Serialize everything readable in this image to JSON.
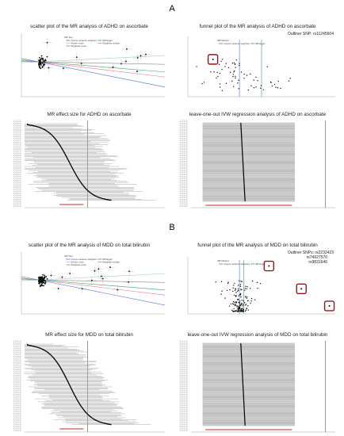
{
  "figure": {
    "sections": [
      {
        "label": "A",
        "panels": [
          {
            "title": "scatter plot of the MR analysis of ADHD on ascorbate"
          },
          {
            "title": "funnel plot of the MR analysis of ADHD on ascorbate",
            "note": [
              "Outliner SNP: rs11245604"
            ]
          },
          {
            "title": "MR effect size for ADHD on ascorbate"
          },
          {
            "title": "leave-one-out IVW regression analysis of ADHD on ascorbate"
          }
        ]
      },
      {
        "label": "B",
        "panels": [
          {
            "title": "scatter plot of the MR analysis of MDD on total bilirubin"
          },
          {
            "title": "funnel plot of the MR analysis of MDD on total bilirubin",
            "note": [
              "Outliner SNPs: rs2232423",
              "rs74927570",
              "rs9831646"
            ]
          },
          {
            "title": "MR effect size for MDD on total bilirubin"
          },
          {
            "title": "leave-one-out IVW regression analysis of MDD on total bilirubin"
          }
        ]
      }
    ],
    "legends": {
      "scatter": {
        "title": "MR Test",
        "items": [
          "Inverse variance weighted",
          "MR Egger",
          "Simple mode",
          "Weighted median",
          "Weighted mode"
        ]
      },
      "funnel": {
        "title": "MR Method",
        "items": [
          "Inverse variance weighted",
          "MR Egger"
        ]
      }
    }
  }
}
